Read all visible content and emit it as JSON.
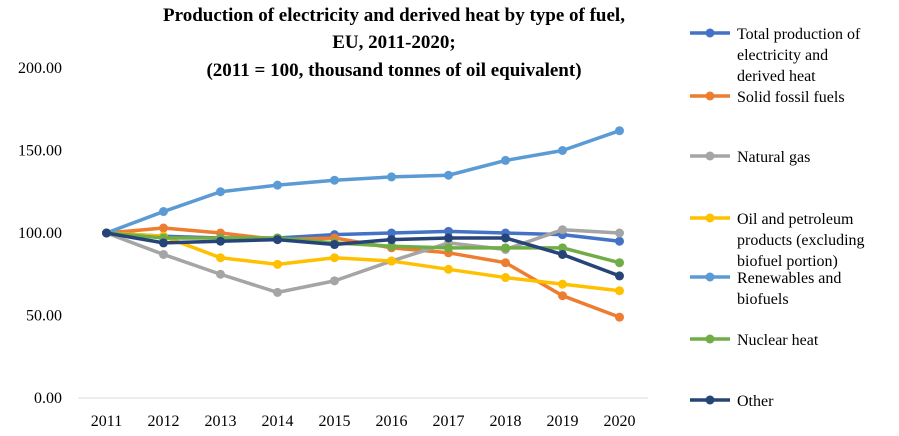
{
  "chart_data": {
    "type": "line",
    "title_lines": [
      "Production of electricity and derived heat by type of fuel,",
      "EU, 2011-2020;",
      "(2011 = 100, thousand tonnes of oil equivalent)"
    ],
    "x": [
      "2011",
      "2012",
      "2013",
      "2014",
      "2015",
      "2016",
      "2017",
      "2018",
      "2019",
      "2020"
    ],
    "yticks": [
      "0.00",
      "50.00",
      "100.00",
      "150.00",
      "200.00"
    ],
    "ylim": [
      0,
      200
    ],
    "grid": false,
    "legend_position": "right",
    "series": [
      {
        "name": "Total production of electricity and derived heat",
        "legend_lines": [
          "Total production of",
          "electricity and",
          "derived heat"
        ],
        "color": "#4472C4",
        "values": [
          100,
          98,
          97,
          97,
          99,
          100,
          101,
          100,
          99,
          95
        ]
      },
      {
        "name": "Solid fossil fuels",
        "legend_lines": [
          "Solid fossil fuels"
        ],
        "color": "#ED7D31",
        "values": [
          100,
          103,
          100,
          96,
          97,
          91,
          88,
          82,
          62,
          49
        ]
      },
      {
        "name": "Natural gas",
        "legend_lines": [
          "Natural gas"
        ],
        "color": "#A5A5A5",
        "values": [
          100,
          87,
          75,
          64,
          71,
          83,
          94,
          90,
          102,
          100
        ]
      },
      {
        "name": "Oil and petroleum products (excluding biofuel portion)",
        "legend_lines": [
          "Oil and petroleum",
          "products (excluding",
          "biofuel portion)"
        ],
        "color": "#FFC000",
        "values": [
          100,
          98,
          85,
          81,
          85,
          83,
          78,
          73,
          69,
          65
        ]
      },
      {
        "name": "Renewables and biofuels",
        "legend_lines": [
          "Renewables and",
          "biofuels"
        ],
        "color": "#5B9BD5",
        "values": [
          100,
          113,
          125,
          129,
          132,
          134,
          135,
          144,
          150,
          162
        ]
      },
      {
        "name": "Nuclear heat",
        "legend_lines": [
          "Nuclear heat"
        ],
        "color": "#70AD47",
        "values": [
          100,
          97,
          97,
          97,
          94,
          92,
          91,
          91,
          91,
          82
        ]
      },
      {
        "name": "Other",
        "legend_lines": [
          "Other"
        ],
        "color": "#264478",
        "values": [
          100,
          94,
          95,
          96,
          93,
          96,
          97,
          97,
          87,
          74
        ]
      }
    ]
  }
}
